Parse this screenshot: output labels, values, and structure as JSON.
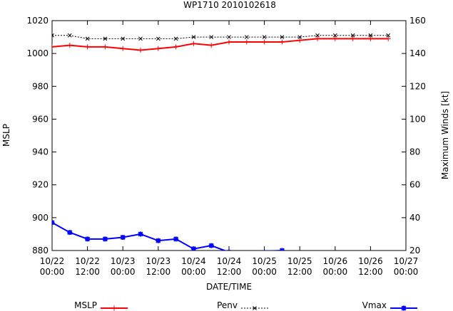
{
  "chart_data": {
    "type": "line",
    "title": "WP1710 2010102618",
    "xlabel": "DATE/TIME",
    "ylabel_left": "MSLP",
    "ylabel_right": "Maximum Winds [kt]",
    "x_ticks": [
      {
        "date": "10/22",
        "time": "00:00"
      },
      {
        "date": "10/22",
        "time": "12:00"
      },
      {
        "date": "10/23",
        "time": "00:00"
      },
      {
        "date": "10/23",
        "time": "12:00"
      },
      {
        "date": "10/24",
        "time": "00:00"
      },
      {
        "date": "10/24",
        "time": "12:00"
      },
      {
        "date": "10/25",
        "time": "00:00"
      },
      {
        "date": "10/25",
        "time": "12:00"
      },
      {
        "date": "10/26",
        "time": "00:00"
      },
      {
        "date": "10/26",
        "time": "12:00"
      },
      {
        "date": "10/27",
        "time": "00:00"
      }
    ],
    "xlim_hours": [
      0,
      120
    ],
    "ylim_left": [
      880,
      1020
    ],
    "yticks_left": [
      880,
      900,
      920,
      940,
      960,
      980,
      1000,
      1020
    ],
    "ylim_right": [
      20,
      160
    ],
    "yticks_right": [
      20,
      40,
      60,
      80,
      100,
      120,
      140,
      160
    ],
    "grid": false,
    "legend": "bottom",
    "series": [
      {
        "name": "MSLP",
        "axis": "left",
        "color": "#ff0000",
        "marker": "plus",
        "dash": "solid",
        "x_hours": [
          0,
          6,
          12,
          18,
          24,
          30,
          36,
          42,
          48,
          54,
          60,
          66,
          72,
          78,
          84,
          90,
          96,
          102,
          108,
          114
        ],
        "values": [
          1004,
          1005,
          1004,
          1004,
          1003,
          1002,
          1003,
          1004,
          1006,
          1005,
          1007,
          1007,
          1007,
          1007,
          1008,
          1009,
          1009,
          1009,
          1009,
          1009
        ]
      },
      {
        "name": "Penv",
        "axis": "left",
        "color": "#000000",
        "marker": "cross",
        "dash": "dotted",
        "x_hours": [
          0,
          6,
          12,
          18,
          24,
          30,
          36,
          42,
          48,
          54,
          60,
          66,
          72,
          78,
          84,
          90,
          96,
          102,
          108,
          114
        ],
        "values": [
          1011,
          1011,
          1009,
          1009,
          1009,
          1009,
          1009,
          1009,
          1010,
          1010,
          1010,
          1010,
          1010,
          1010,
          1010,
          1011,
          1011,
          1011,
          1011,
          1011
        ]
      },
      {
        "name": "Vmax",
        "axis": "right",
        "color": "#0000ff",
        "marker": "star",
        "dash": "solid",
        "x_hours": [
          0,
          6,
          12,
          18,
          24,
          30,
          36,
          42,
          48,
          54,
          60,
          78
        ],
        "values": [
          37,
          31,
          27,
          27,
          28,
          30,
          26,
          27,
          21,
          23,
          19,
          20
        ]
      }
    ]
  }
}
